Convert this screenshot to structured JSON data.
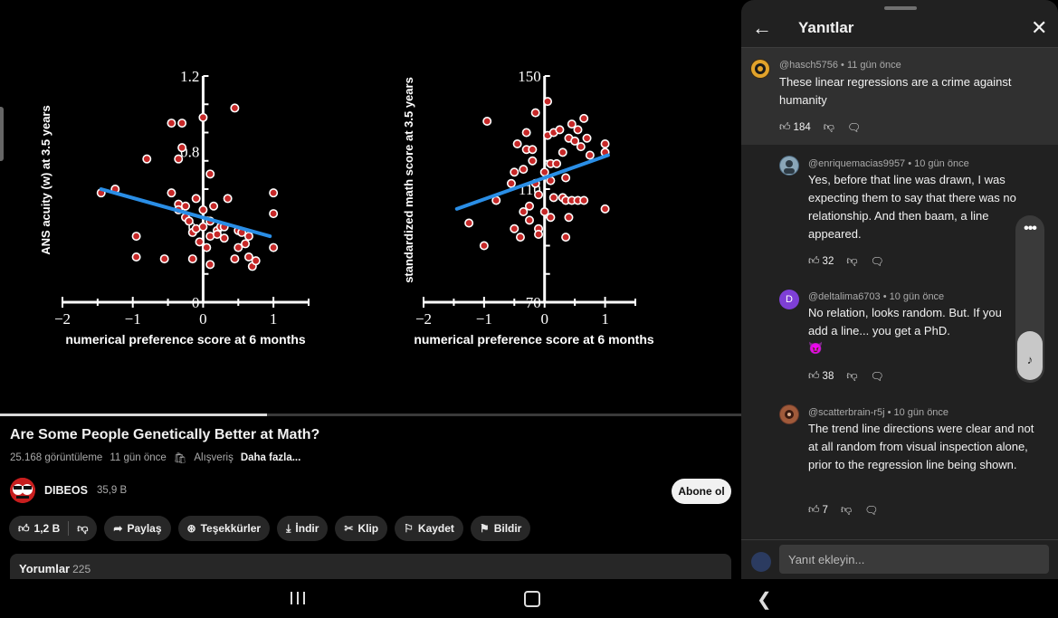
{
  "video": {
    "progress_fraction": 0.36,
    "charts": [
      {
        "type": "scatter",
        "ylabel": "ANS acuity (w) at 3.5 years",
        "xlabel": "numerical preference score at 6 months",
        "x_ticks": [
          "−2",
          "−1",
          "0",
          "1"
        ],
        "y_ticks": [
          "1.2",
          "0.8",
          "0.",
          "0"
        ],
        "xlim": [
          -2,
          1.5
        ],
        "ylim": [
          0,
          1.2
        ],
        "regression": {
          "x1": -1.45,
          "y1": 0.6,
          "x2": 0.95,
          "y2": 0.35
        },
        "points": [
          [
            -1.45,
            0.58
          ],
          [
            -1.25,
            0.6
          ],
          [
            -0.8,
            0.76
          ],
          [
            -0.95,
            0.35
          ],
          [
            -0.95,
            0.24
          ],
          [
            -0.55,
            0.23
          ],
          [
            -0.45,
            0.58
          ],
          [
            -0.45,
            0.95
          ],
          [
            -0.35,
            0.52
          ],
          [
            -0.35,
            0.49
          ],
          [
            -0.35,
            0.76
          ],
          [
            -0.3,
            0.82
          ],
          [
            -0.3,
            0.95
          ],
          [
            -0.25,
            0.51
          ],
          [
            -0.25,
            0.45
          ],
          [
            -0.2,
            0.43
          ],
          [
            -0.15,
            0.37
          ],
          [
            -0.15,
            0.23
          ],
          [
            -0.1,
            0.55
          ],
          [
            -0.1,
            0.39
          ],
          [
            -0.05,
            0.32
          ],
          [
            0.0,
            0.98
          ],
          [
            0.0,
            0.49
          ],
          [
            0.0,
            0.4
          ],
          [
            0.05,
            0.29
          ],
          [
            0.1,
            0.68
          ],
          [
            0.1,
            0.43
          ],
          [
            0.1,
            0.35
          ],
          [
            0.1,
            0.2
          ],
          [
            0.15,
            0.51
          ],
          [
            0.2,
            0.38
          ],
          [
            0.2,
            0.36
          ],
          [
            0.25,
            0.4
          ],
          [
            0.3,
            0.4
          ],
          [
            0.3,
            0.34
          ],
          [
            0.35,
            0.55
          ],
          [
            0.45,
            1.03
          ],
          [
            0.45,
            0.23
          ],
          [
            0.5,
            0.38
          ],
          [
            0.5,
            0.29
          ],
          [
            0.55,
            0.37
          ],
          [
            0.6,
            0.31
          ],
          [
            0.65,
            0.35
          ],
          [
            0.65,
            0.24
          ],
          [
            0.7,
            0.19
          ],
          [
            0.75,
            0.22
          ],
          [
            1.0,
            0.58
          ],
          [
            1.0,
            0.47
          ],
          [
            1.0,
            0.29
          ]
        ]
      },
      {
        "type": "scatter",
        "ylabel": "standardized math score at 3.5 years",
        "xlabel": "numerical preference score at 6 months",
        "x_ticks": [
          "−2",
          "−1",
          "0",
          "1"
        ],
        "y_ticks": [
          "150",
          "110",
          "70"
        ],
        "xlim": [
          -2,
          1.5
        ],
        "ylim": [
          70,
          150
        ],
        "regression": {
          "x1": -1.45,
          "y1": 103,
          "x2": 1.05,
          "y2": 122
        },
        "points": [
          [
            -1.25,
            98
          ],
          [
            -1.0,
            90
          ],
          [
            -0.95,
            134
          ],
          [
            -0.8,
            106
          ],
          [
            -0.55,
            112
          ],
          [
            -0.5,
            116
          ],
          [
            -0.5,
            96
          ],
          [
            -0.45,
            126
          ],
          [
            -0.4,
            93
          ],
          [
            -0.35,
            117
          ],
          [
            -0.35,
            102
          ],
          [
            -0.3,
            130
          ],
          [
            -0.3,
            124
          ],
          [
            -0.25,
            104
          ],
          [
            -0.25,
            99
          ],
          [
            -0.2,
            120
          ],
          [
            -0.2,
            124
          ],
          [
            -0.15,
            137
          ],
          [
            -0.15,
            112
          ],
          [
            -0.1,
            108
          ],
          [
            -0.1,
            96
          ],
          [
            -0.1,
            94
          ],
          [
            0.0,
            116
          ],
          [
            0.0,
            102
          ],
          [
            0.05,
            141
          ],
          [
            0.05,
            129
          ],
          [
            0.1,
            119
          ],
          [
            0.1,
            113
          ],
          [
            0.1,
            100
          ],
          [
            0.15,
            130
          ],
          [
            0.15,
            107
          ],
          [
            0.2,
            119
          ],
          [
            0.25,
            131
          ],
          [
            0.3,
            123
          ],
          [
            0.3,
            107
          ],
          [
            0.35,
            114
          ],
          [
            0.35,
            106
          ],
          [
            0.35,
            93
          ],
          [
            0.4,
            128
          ],
          [
            0.4,
            100
          ],
          [
            0.45,
            133
          ],
          [
            0.45,
            106
          ],
          [
            0.5,
            127
          ],
          [
            0.55,
            131
          ],
          [
            0.55,
            106
          ],
          [
            0.6,
            125
          ],
          [
            0.65,
            135
          ],
          [
            0.65,
            106
          ],
          [
            0.7,
            128
          ],
          [
            0.75,
            122
          ],
          [
            1.0,
            126
          ],
          [
            1.0,
            123
          ],
          [
            1.0,
            103
          ]
        ]
      }
    ],
    "title": "Are Some People Genetically Better at Math?",
    "views": "25.168 görüntüleme",
    "age": "11 gün önce",
    "shopping": "Alışveriş",
    "more": "Daha fazla...",
    "channel": "DIBEOS",
    "subscribers": "35,9 B",
    "subscribe": "Abone ol",
    "likes": "1,2 B",
    "share": "Paylaş",
    "thanks": "Teşekkürler",
    "download": "İndir",
    "clip": "Klip",
    "save": "Kaydet",
    "report": "Bildir",
    "comments_label": "Yorumlar",
    "comments_count": "225"
  },
  "panel": {
    "title": "Yanıtlar",
    "reply_placeholder": "Yanıt ekleyin...",
    "top": {
      "author": "@hasch5756 • 11 gün önce",
      "text": "These linear regressions are a crime against humanity",
      "likes": "184"
    },
    "replies": [
      {
        "author": "@enriquemacias9957 • 10 gün önce",
        "text": "Yes, before that line was drawn, I was expecting them to say that there was no relationship. And then baam, a line appeared.",
        "likes": "32"
      },
      {
        "author": "@deltalima6703 • 10 gün önce",
        "initial": "D",
        "text": "No relation, looks random.  But.  If you add a line...  you get a PhD.",
        "emoji": "😈",
        "likes": "38"
      },
      {
        "author": "@scatterbrain-r5j • 10 gün önce",
        "text": "The trend line directions were clear and not at all random from visual inspection alone, prior to the regression line being shown.",
        "likes": "7"
      }
    ]
  }
}
